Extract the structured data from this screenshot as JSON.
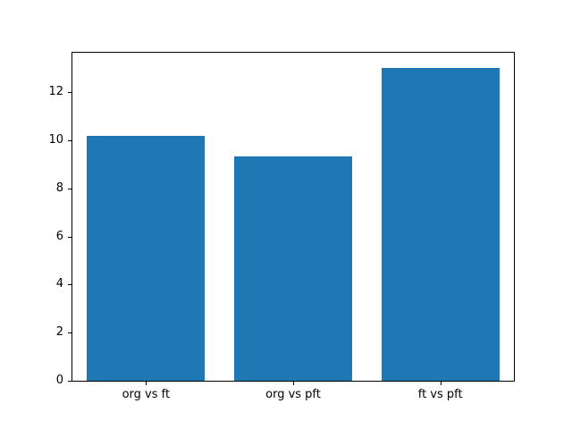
{
  "chart_data": {
    "type": "bar",
    "categories": [
      "org vs ft",
      "org vs pft",
      "ft vs pft"
    ],
    "values": [
      10.2,
      9.35,
      13.0
    ],
    "title": "",
    "xlabel": "",
    "ylabel": "",
    "ylim": [
      0,
      13.65
    ],
    "yticks": [
      0,
      2,
      4,
      6,
      8,
      10,
      12
    ],
    "bar_color": "#1f77b4",
    "bar_width_fraction": 0.8,
    "grid": false,
    "legend": null,
    "background_color": "#ffffff",
    "spine_color": "#000000"
  }
}
